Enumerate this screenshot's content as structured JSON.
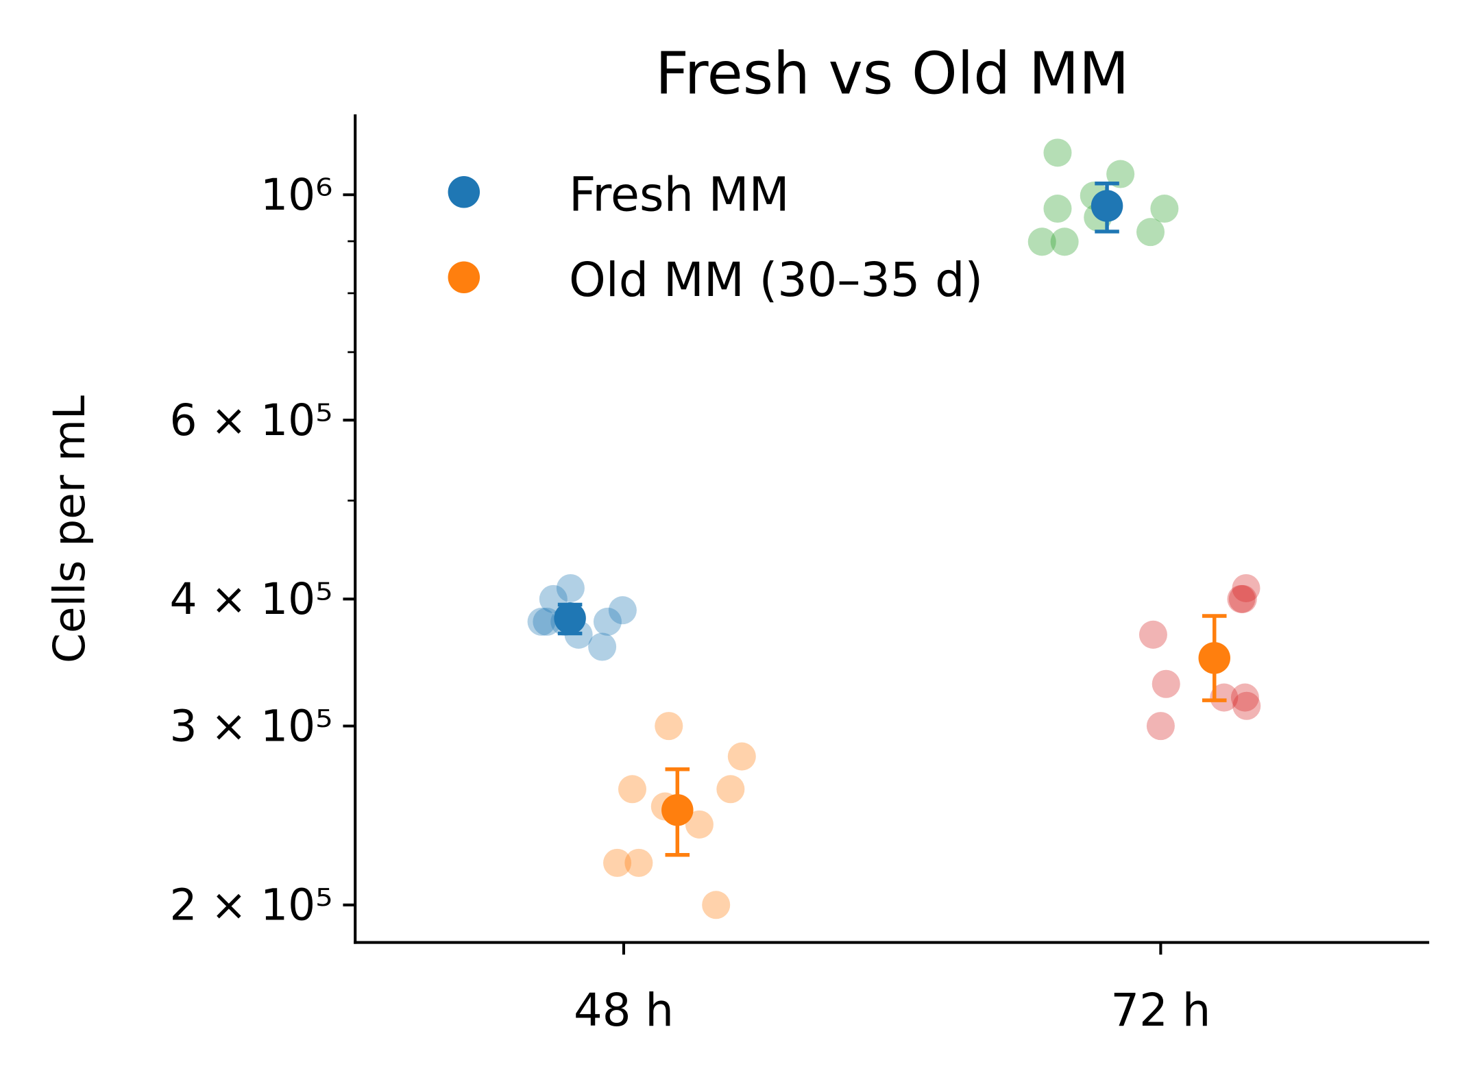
{
  "chart_data": {
    "type": "scatter",
    "title": "Fresh vs Old MM",
    "xlabel": "",
    "ylabel": "Cells per mL",
    "categories": [
      "48 h",
      "72 h"
    ],
    "xlim": [
      -0.5,
      1.5
    ],
    "ylim": [
      183700,
      1200000
    ],
    "yscale": "log",
    "yticks": [
      {
        "value": 200000,
        "label": "2 × 10⁵"
      },
      {
        "value": 300000,
        "label": "3 × 10⁵"
      },
      {
        "value": 400000,
        "label": "4 × 10⁵"
      },
      {
        "value": 600000,
        "label": "6 × 10⁵"
      },
      {
        "value": 1000000,
        "label": "10⁶"
      }
    ],
    "yminor_ticks": [
      500000,
      700000,
      800000,
      900000
    ],
    "grid": false,
    "legend_position": "top-left",
    "series": [
      {
        "name": "Fresh MM",
        "color": "#1f77b4",
        "mean": [
          {
            "x": -0.1,
            "y": 383000,
            "err_low": 370000,
            "err_high": 395000
          },
          {
            "x": 0.9,
            "y": 975000,
            "err_low": 920000,
            "err_high": 1026000
          }
        ],
        "points": [
          {
            "x": -0.153,
            "y": 380000,
            "color": "#1f77b4"
          },
          {
            "x": -0.131,
            "y": 400000,
            "color": "#1f77b4"
          },
          {
            "x": -0.099,
            "y": 410000,
            "color": "#1f77b4"
          },
          {
            "x": -0.143,
            "y": 380000,
            "color": "#1f77b4"
          },
          {
            "x": -0.11,
            "y": 380000,
            "color": "#1f77b4"
          },
          {
            "x": -0.084,
            "y": 369000,
            "color": "#1f77b4"
          },
          {
            "x": -0.04,
            "y": 359000,
            "color": "#1f77b4"
          },
          {
            "x": -0.03,
            "y": 380000,
            "color": "#1f77b4"
          },
          {
            "x": -0.002,
            "y": 390000,
            "color": "#1f77b4"
          },
          {
            "x": 0.808,
            "y": 1100000,
            "color": "#2ca02c"
          },
          {
            "x": 0.925,
            "y": 1048000,
            "color": "#2ca02c"
          },
          {
            "x": 0.876,
            "y": 998000,
            "color": "#2ca02c"
          },
          {
            "x": 0.808,
            "y": 969000,
            "color": "#2ca02c"
          },
          {
            "x": 1.007,
            "y": 969000,
            "color": "#2ca02c"
          },
          {
            "x": 0.883,
            "y": 950000,
            "color": "#2ca02c"
          },
          {
            "x": 0.981,
            "y": 919000,
            "color": "#2ca02c"
          },
          {
            "x": 0.779,
            "y": 899000,
            "color": "#2ca02c"
          },
          {
            "x": 0.821,
            "y": 899000,
            "color": "#2ca02c"
          }
        ]
      },
      {
        "name": "Old MM (30–35 d)",
        "color": "#ff7f0e",
        "mean": [
          {
            "x": 0.1,
            "y": 248000,
            "err_low": 224000,
            "err_high": 272000
          },
          {
            "x": 1.1,
            "y": 350000,
            "err_low": 318000,
            "err_high": 385000
          }
        ],
        "points": [
          {
            "x": 0.084,
            "y": 300000,
            "color": "#ff7f0e"
          },
          {
            "x": 0.22,
            "y": 280000,
            "color": "#ff7f0e"
          },
          {
            "x": 0.016,
            "y": 260000,
            "color": "#ff7f0e"
          },
          {
            "x": 0.199,
            "y": 260000,
            "color": "#ff7f0e"
          },
          {
            "x": 0.077,
            "y": 250000,
            "color": "#ff7f0e"
          },
          {
            "x": 0.141,
            "y": 240000,
            "color": "#ff7f0e"
          },
          {
            "x": -0.012,
            "y": 220000,
            "color": "#ff7f0e"
          },
          {
            "x": 0.028,
            "y": 220000,
            "color": "#ff7f0e"
          },
          {
            "x": 0.172,
            "y": 200000,
            "color": "#ff7f0e"
          },
          {
            "x": 1.159,
            "y": 410000,
            "color": "#d62728"
          },
          {
            "x": 1.153,
            "y": 400000,
            "color": "#d62728"
          },
          {
            "x": 1.15,
            "y": 400000,
            "color": "#d62728"
          },
          {
            "x": 0.986,
            "y": 369000,
            "color": "#d62728"
          },
          {
            "x": 1.01,
            "y": 330000,
            "color": "#d62728"
          },
          {
            "x": 1.118,
            "y": 320000,
            "color": "#d62728"
          },
          {
            "x": 1.157,
            "y": 320000,
            "color": "#d62728"
          },
          {
            "x": 1.16,
            "y": 314000,
            "color": "#d62728"
          },
          {
            "x": 1.0,
            "y": 300000,
            "color": "#d62728"
          }
        ]
      }
    ]
  }
}
